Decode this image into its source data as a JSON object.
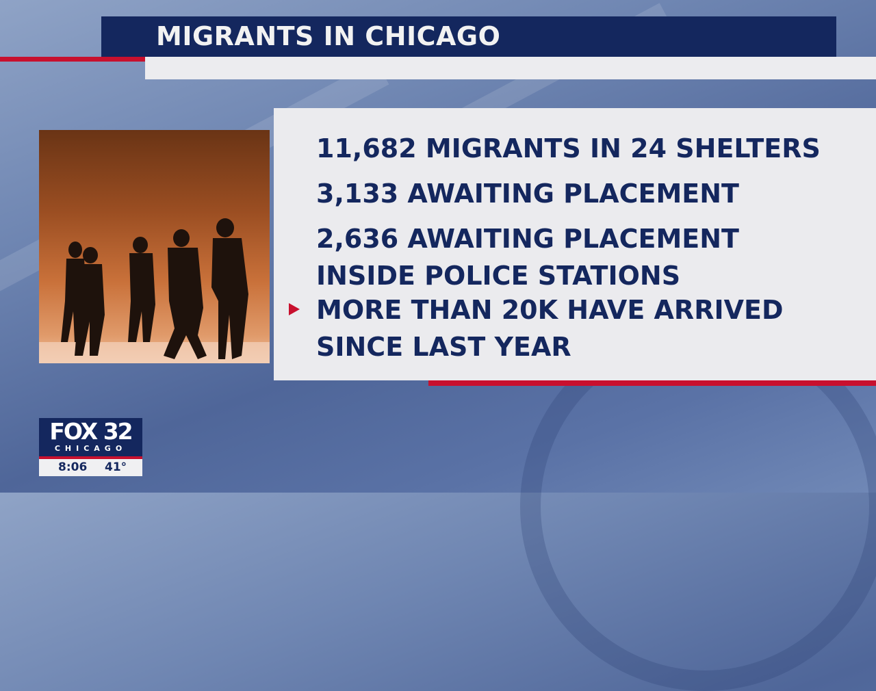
{
  "header": {
    "title": "MIGRANTS IN CHICAGO"
  },
  "panel": {
    "items": [
      {
        "text": "11,682 MIGRANTS IN 24 SHELTERS",
        "bullet": false
      },
      {
        "text": "3,133 AWAITING PLACEMENT",
        "bullet": false
      },
      {
        "line1": "2,636 AWAITING PLACEMENT",
        "line2": "INSIDE POLICE STATIONS",
        "bullet": false
      },
      {
        "line1": "MORE THAN 20K HAVE ARRIVED",
        "line2": "SINCE LAST YEAR",
        "bullet": true
      }
    ]
  },
  "logo": {
    "brand": "FOX 32",
    "city": "CHICAGO",
    "time": "8:06",
    "temperature": "41°"
  },
  "colors": {
    "navy": "#14275e",
    "red": "#c8102e",
    "panel": "#ebebee"
  }
}
